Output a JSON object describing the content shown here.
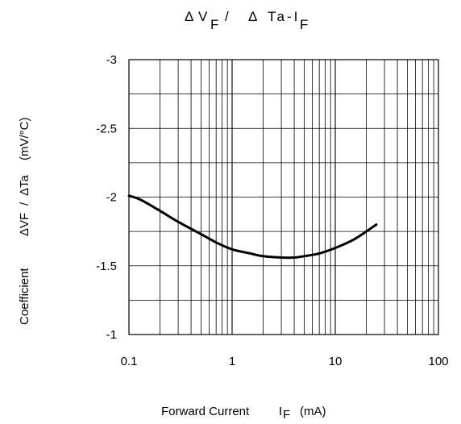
{
  "chart_data": {
    "type": "line",
    "title": "ΔV F/ Δ Ta-I F",
    "title_parts": {
      "delta1": "Δ",
      "v": "V",
      "sub_f1": "F",
      "slash": "/",
      "delta2": "Δ",
      "ta": "Ta-I",
      "sub_f2": "F"
    },
    "xlabel": "Forward Current IF (mA)",
    "xlabel_parts": {
      "main": "Forward Current",
      "i": "I",
      "sub": "F",
      "unit": "(mA)"
    },
    "ylabel": "Coefficient ΔVF/ ΔTa (mV/°C)",
    "ylabel_parts": {
      "word": "Coefficient",
      "dvf": "ΔVF",
      "slash": "/",
      "dta": "ΔTa",
      "unit": "(mV/°C)"
    },
    "x_scale": "log",
    "xlim": [
      0.1,
      100
    ],
    "ylim": [
      -1,
      -3
    ],
    "x_ticks": [
      "0.1",
      "1",
      "10",
      "100"
    ],
    "y_ticks": [
      "-3",
      "-2.5",
      "-2",
      "-1.5",
      "-1"
    ],
    "grid": true,
    "series": [
      {
        "x": [
          0.1,
          0.13,
          0.2,
          0.3,
          0.5,
          0.7,
          1.0,
          1.5,
          2.0,
          3.0,
          4.0,
          5.0,
          7.0,
          10.0,
          15.0,
          20.0,
          25.0
        ],
        "y": [
          -2.01,
          -1.98,
          -1.9,
          -1.82,
          -1.73,
          -1.67,
          -1.62,
          -1.59,
          -1.57,
          -1.56,
          -1.56,
          -1.57,
          -1.59,
          -1.63,
          -1.69,
          -1.75,
          -1.8
        ]
      }
    ]
  }
}
